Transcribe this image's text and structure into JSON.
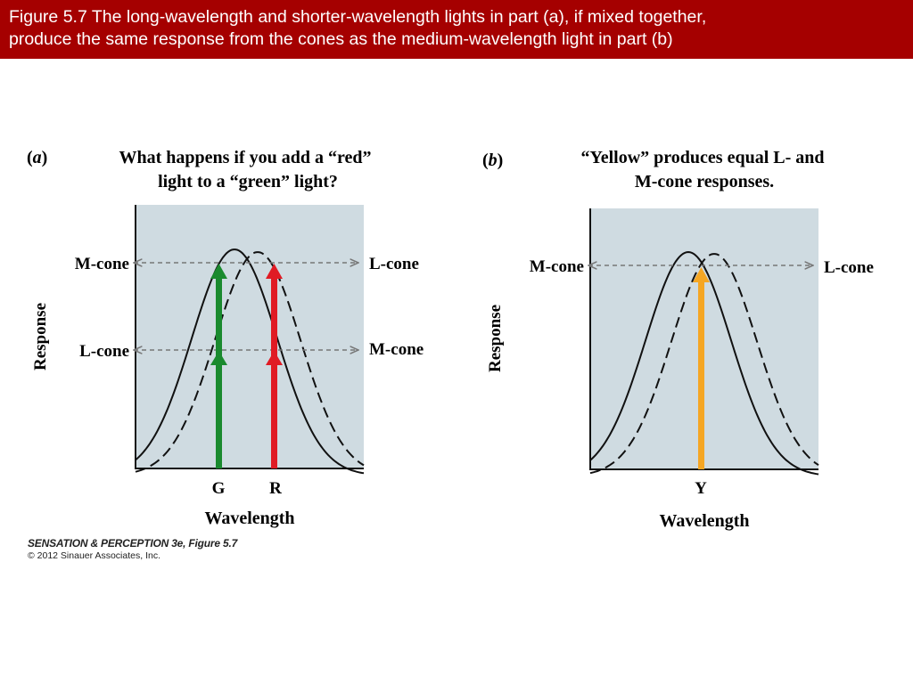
{
  "caption": "Figure 5.7  The long-wavelength and shorter-wavelength lights in part (a), if mixed together,\nproduce the same response from the cones as the medium-wavelength light in part (b)",
  "panel_a": {
    "tag_open": "(",
    "tag_letter": "a",
    "tag_close": ")",
    "title_line1": "What happens if you add a “red”",
    "title_line2": "light to a “green” light?",
    "label_upper_left": "M-cone",
    "label_upper_right": "L-cone",
    "label_lower_left": "L-cone",
    "label_lower_right": "M-cone",
    "y_axis": "Response",
    "x_axis": "Wavelength",
    "tick_g": "G",
    "tick_r": "R"
  },
  "panel_b": {
    "tag_open": "(",
    "tag_letter": "b",
    "tag_close": ")",
    "title_line1": "“Yellow” produces equal L- and",
    "title_line2": "M-cone responses.",
    "label_left": "M-cone",
    "label_right": "L-cone",
    "y_axis": "Response",
    "x_axis": "Wavelength",
    "tick_y": "Y"
  },
  "credit": {
    "line1": "SENSATION & PERCEPTION 3e, Figure 5.7",
    "line2": "© 2012 Sinauer Associates, Inc."
  },
  "colors": {
    "banner": "#a50000",
    "plot_bg": "#cfdbe1",
    "green_arrow": "#1a8a2e",
    "red_arrow": "#e01b24",
    "yellow_arrow": "#f5a623"
  }
}
